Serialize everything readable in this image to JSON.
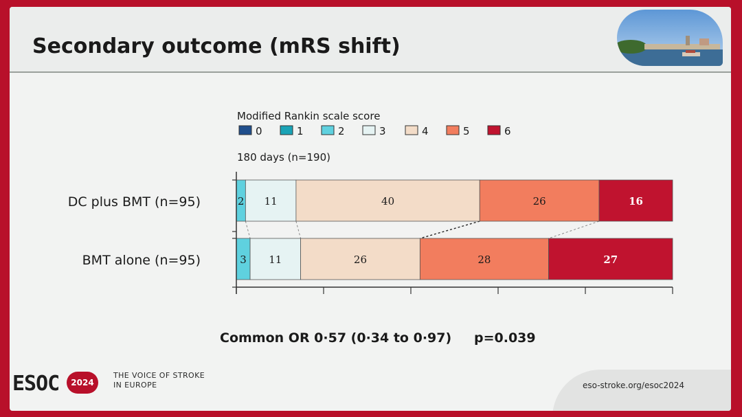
{
  "slide": {
    "title": "Secondary outcome (mRS shift)",
    "stat_line": "Common OR 0·57 (0·34 to 0·97)",
    "p_value": "p=0.039"
  },
  "footer": {
    "logo": "ESOC",
    "year": "2024",
    "tagline_line1": "THE VOICE OF STROKE",
    "tagline_line2": "IN EUROPE",
    "url": "eso-stroke.org/esoc2024"
  },
  "colors": {
    "accent": "#b8102a",
    "mrs": [
      "#1f4e8c",
      "#1aa3b6",
      "#5fd1df",
      "#e6f3f3",
      "#f3dcc8",
      "#f27d5e",
      "#c0132f"
    ]
  },
  "chart_data": {
    "type": "bar",
    "orientation": "horizontal",
    "stacked": true,
    "legend_title": "Modified Rankin scale score",
    "legend": [
      "0",
      "1",
      "2",
      "3",
      "4",
      "5",
      "6"
    ],
    "subtitle": "180 days (n=190)",
    "categories": [
      "DC plus BMT (n=95)",
      "BMT alone (n=95)"
    ],
    "series": [
      {
        "name": "0",
        "values": [
          0,
          0
        ]
      },
      {
        "name": "1",
        "values": [
          0,
          0
        ]
      },
      {
        "name": "2",
        "values": [
          2,
          3
        ]
      },
      {
        "name": "3",
        "values": [
          11,
          11
        ]
      },
      {
        "name": "4",
        "values": [
          40,
          26
        ]
      },
      {
        "name": "5",
        "values": [
          26,
          28
        ]
      },
      {
        "name": "6",
        "values": [
          16,
          27
        ]
      }
    ],
    "xlim": [
      0,
      95
    ]
  }
}
